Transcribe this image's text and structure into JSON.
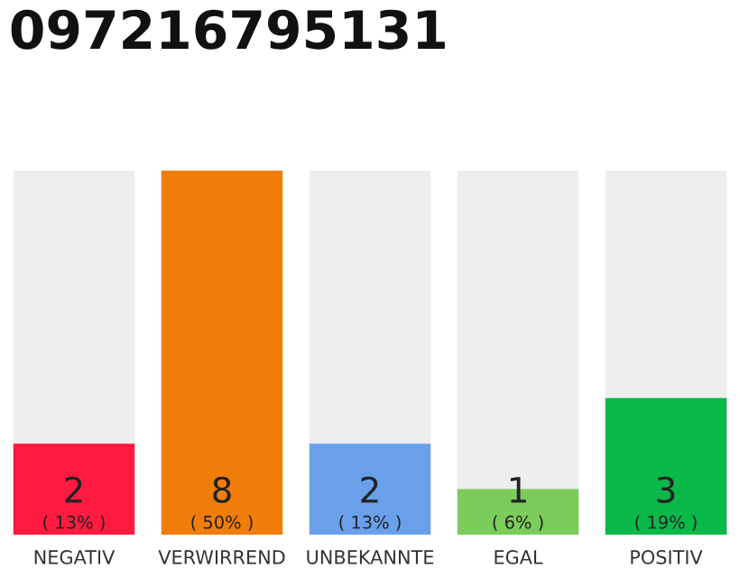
{
  "chart_data": {
    "type": "bar",
    "title": "097216795131",
    "categories": [
      "NEGATIV",
      "VERWIRREND",
      "UNBEKANNTE",
      "EGAL",
      "POSITIV"
    ],
    "values": [
      2,
      8,
      2,
      1,
      3
    ],
    "colors": [
      "#ff1a40",
      "#f07d0a",
      "#6aa0ea",
      "#7ccc5c",
      "#0bb84a"
    ],
    "value_labels": [
      "2\n( 13% )",
      "8\n( 50% )",
      "2\n( 13% )",
      "1\n( 6% )",
      "3\n( 19% )"
    ],
    "grid": false,
    "legend": false
  }
}
